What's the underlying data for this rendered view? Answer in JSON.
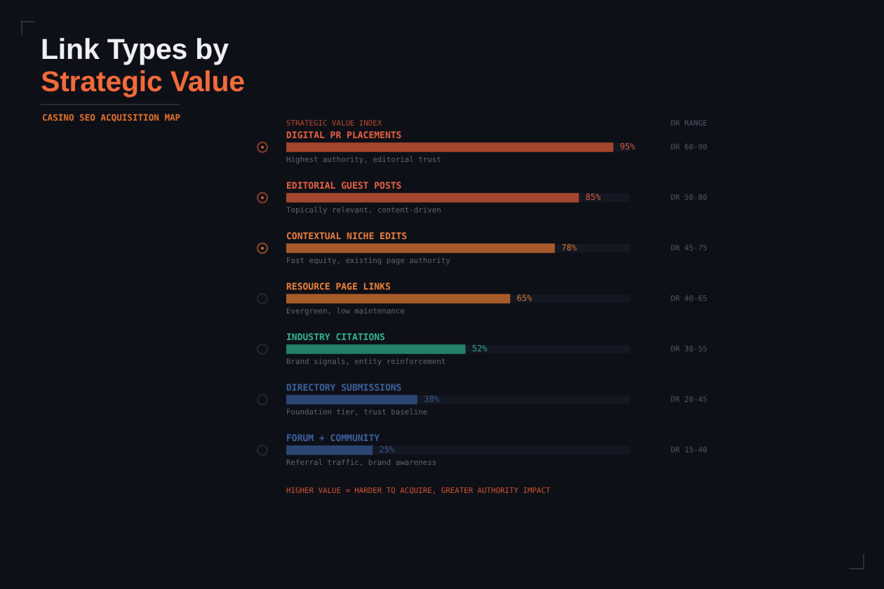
{
  "chart_data": {
    "type": "bar",
    "orientation": "horizontal",
    "title": "Link Types by\nStrategic Value",
    "subtitle": "CASINO SEO ACQUISITION MAP",
    "xlabel": "STRATEGIC VALUE INDEX",
    "categories": [
      "DIGITAL PR PLACEMENTS",
      "EDITORIAL GUEST POSTS",
      "CONTEXTUAL NICHE EDITS",
      "RESOURCE PAGE LINKS",
      "INDUSTRY CITATIONS",
      "DIRECTORY SUBMISSIONS",
      "FORUM + COMMUNITY"
    ],
    "values": [
      95,
      85,
      78,
      65,
      52,
      38,
      25
    ],
    "value_labels": [
      "95%",
      "85%",
      "78%",
      "65%",
      "52%",
      "38%",
      "25%"
    ],
    "colors": [
      "#a4452f",
      "#a4462f",
      "#a65a2c",
      "#a85c2a",
      "#24806a",
      "#2b4570",
      "#2b4572"
    ],
    "xlim": [
      0,
      100
    ],
    "tick_labels": "y",
    "annotations": [
      "DR RANGE",
      "DR 60-90",
      "DR 50-80",
      "DR 45-75",
      "DR 40-65",
      "DR 30-55",
      "DR 20-45",
      "DR 15-40",
      "HIGHER VALUE = HARDER TO ACQUIRE, GREATER AUTHORITY IMPACT",
      {
        "text": "Highest authority, editorial trust",
        "y": "DIGITAL PR PLACEMENTS"
      },
      {
        "text": "Topically relevant, content-driven",
        "y": "EDITORIAL GUEST POSTS"
      },
      {
        "text": "Fast equity, existing page authority",
        "y": "CONTEXTUAL NICHE EDITS"
      },
      {
        "text": "Evergreen, low maintenance",
        "y": "RESOURCE PAGE LINKS"
      },
      {
        "text": "Brand signals, entity reinforcement",
        "y": "INDUSTRY CITATIONS"
      },
      {
        "text": "Foundation tier, trust baseline",
        "y": "DIRECTORY SUBMISSIONS"
      },
      {
        "text": "Referral traffic, brand awareness",
        "y": "FORUM + COMMUNITY"
      }
    ]
  }
}
